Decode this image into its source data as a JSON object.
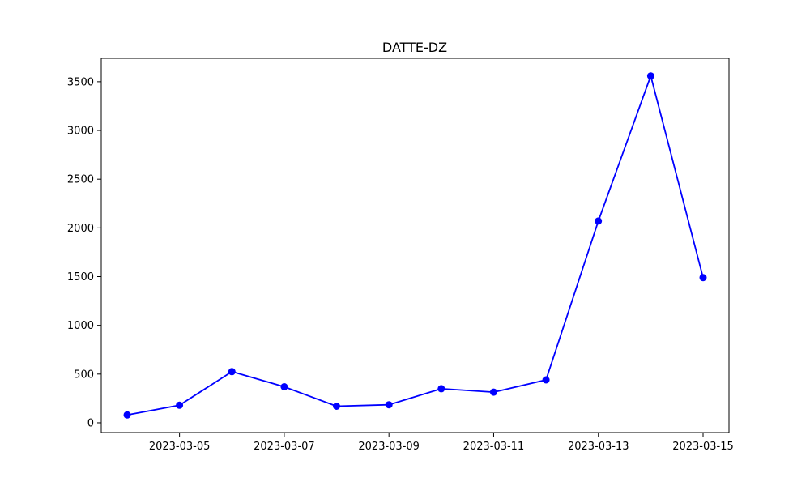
{
  "chart_data": {
    "type": "line",
    "title": "DATTE-DZ",
    "xlabel": "",
    "ylabel": "",
    "x": [
      "2023-03-04",
      "2023-03-05",
      "2023-03-06",
      "2023-03-07",
      "2023-03-08",
      "2023-03-09",
      "2023-03-10",
      "2023-03-11",
      "2023-03-12",
      "2023-03-13",
      "2023-03-14",
      "2023-03-15"
    ],
    "series": [
      {
        "values": [
          80,
          180,
          525,
          370,
          170,
          185,
          350,
          315,
          440,
          2070,
          3560,
          1490
        ],
        "color": "#0000ff",
        "marker": "circle"
      }
    ],
    "x_ticks": [
      "2023-03-05",
      "2023-03-07",
      "2023-03-09",
      "2023-03-11",
      "2023-03-13",
      "2023-03-15"
    ],
    "y_ticks": [
      "0",
      "500",
      "1000",
      "1500",
      "2000",
      "2500",
      "3000",
      "3500"
    ],
    "ylim": [
      -100,
      3740
    ],
    "grid": false,
    "legend": "none"
  }
}
